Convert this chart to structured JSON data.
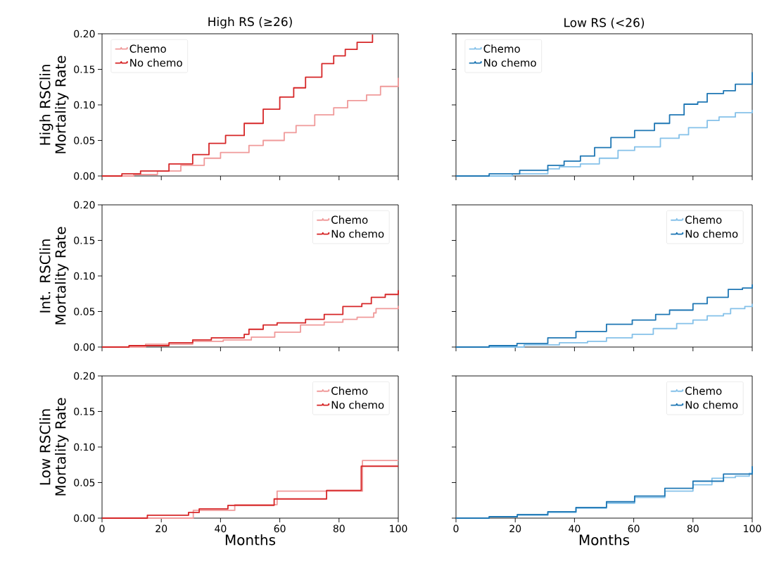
{
  "chart_data": [
    {
      "type": "step",
      "title": "High RS (≥26)",
      "ylabel": "High RSClin Mortality Rate",
      "xlim": [
        0,
        100
      ],
      "ylim": [
        0,
        0.2
      ],
      "xticks": [
        0,
        20,
        40,
        60,
        80,
        100
      ],
      "yticks": [
        {
          "value": 0,
          "label": "0.00"
        },
        {
          "value": 0.05,
          "label": "0.05"
        },
        {
          "value": 0.1,
          "label": "0.10"
        },
        {
          "value": 0.15,
          "label": "0.15"
        },
        {
          "value": 0.2,
          "label": "0.20"
        }
      ],
      "tick_labels": "y",
      "legend": "top left",
      "series": [
        {
          "name": "Chemo",
          "color": "#f09a9a",
          "x": [
            0,
            10.7,
            18.7,
            26.6,
            34.5,
            40,
            49.6,
            54.4,
            61.5,
            65.5,
            71.8,
            78.2,
            82.9,
            89.3,
            94,
            100
          ],
          "values": [
            0,
            0.002,
            0.007,
            0.015,
            0.025,
            0.033,
            0.043,
            0.05,
            0.061,
            0.071,
            0.086,
            0.096,
            0.106,
            0.114,
            0.126,
            0.138
          ]
        },
        {
          "name": "No chemo",
          "color": "#d62728",
          "x": [
            0,
            6.7,
            13,
            22.6,
            30.6,
            36.1,
            41.7,
            48,
            54.4,
            60,
            64.7,
            68.7,
            74.2,
            78.2,
            82.1,
            86.1,
            91.3
          ],
          "values": [
            0,
            0.003,
            0.007,
            0.017,
            0.03,
            0.046,
            0.057,
            0.074,
            0.094,
            0.111,
            0.124,
            0.139,
            0.158,
            0.169,
            0.178,
            0.188,
            0.199
          ]
        }
      ]
    },
    {
      "type": "step",
      "title": "Low RS (<26)",
      "xlim": [
        0,
        100
      ],
      "ylim": [
        0,
        0.2
      ],
      "xticks": [
        0,
        20,
        40,
        60,
        80,
        100
      ],
      "yticks": [
        0,
        0.05,
        0.1,
        0.15,
        0.2
      ],
      "tick_labels": false,
      "legend": "top left",
      "series": [
        {
          "name": "Chemo",
          "color": "#85c1e9",
          "x": [
            0,
            19,
            31,
            34.9,
            42,
            48.4,
            54.7,
            60.3,
            69,
            75.3,
            78.5,
            84.8,
            88.8,
            94.3,
            100
          ],
          "values": [
            0,
            0.003,
            0.01,
            0.013,
            0.017,
            0.025,
            0.036,
            0.041,
            0.053,
            0.058,
            0.068,
            0.078,
            0.083,
            0.089,
            0.093
          ]
        },
        {
          "name": "No chemo",
          "color": "#1f77b4",
          "x": [
            0,
            11.2,
            21.5,
            31,
            36.5,
            42,
            46.8,
            52.3,
            60.3,
            67,
            72.1,
            77,
            81.6,
            84.8,
            90.3,
            94.3,
            100
          ],
          "values": [
            0,
            0.003,
            0.008,
            0.015,
            0.021,
            0.028,
            0.04,
            0.054,
            0.064,
            0.074,
            0.086,
            0.101,
            0.104,
            0.116,
            0.12,
            0.129,
            0.146
          ]
        }
      ]
    },
    {
      "type": "step",
      "ylabel": "Int. RSClin Mortality Rate",
      "xlim": [
        0,
        100
      ],
      "ylim": [
        0,
        0.2
      ],
      "xticks": [
        0,
        20,
        40,
        60,
        80,
        100
      ],
      "yticks": [
        {
          "value": 0,
          "label": "0.00"
        },
        {
          "value": 0.05,
          "label": "0.05"
        },
        {
          "value": 0.1,
          "label": "0.10"
        },
        {
          "value": 0.15,
          "label": "0.15"
        },
        {
          "value": 0.2,
          "label": "0.20"
        }
      ],
      "tick_labels": "y",
      "legend": "top right",
      "series": [
        {
          "name": "Chemo",
          "color": "#f09a9a",
          "x": [
            0,
            14.7,
            30.6,
            40.9,
            50.4,
            58.3,
            63.1,
            67,
            75,
            81.3,
            86.1,
            91.7,
            92.5,
            100
          ],
          "values": [
            0,
            0.004,
            0.008,
            0.01,
            0.014,
            0.021,
            0.021,
            0.031,
            0.035,
            0.039,
            0.042,
            0.048,
            0.054,
            0.058
          ]
        },
        {
          "name": "No chemo",
          "color": "#d62728",
          "x": [
            0,
            9.1,
            22.6,
            30.6,
            36.9,
            48,
            49.6,
            54.4,
            59.1,
            63.9,
            68.7,
            75,
            81.3,
            87.7,
            90.9,
            95.6,
            100
          ],
          "values": [
            0,
            0.002,
            0.006,
            0.01,
            0.013,
            0.018,
            0.025,
            0.031,
            0.034,
            0.034,
            0.039,
            0.046,
            0.057,
            0.061,
            0.07,
            0.074,
            0.08
          ]
        }
      ]
    },
    {
      "type": "step",
      "xlim": [
        0,
        100
      ],
      "ylim": [
        0,
        0.2
      ],
      "xticks": [
        0,
        20,
        40,
        60,
        80,
        100
      ],
      "yticks": [
        0,
        0.05,
        0.1,
        0.15,
        0.2
      ],
      "tick_labels": false,
      "legend": "top right",
      "series": [
        {
          "name": "Chemo",
          "color": "#85c1e9",
          "x": [
            0,
            23,
            34.9,
            44.4,
            50.8,
            59.5,
            66.6,
            74.5,
            80,
            84.8,
            90.3,
            92.7,
            97.5,
            100
          ],
          "values": [
            0,
            0.003,
            0.006,
            0.008,
            0.013,
            0.018,
            0.026,
            0.033,
            0.038,
            0.044,
            0.047,
            0.054,
            0.057,
            0.061
          ]
        },
        {
          "name": "No chemo",
          "color": "#1f77b4",
          "x": [
            0,
            11.2,
            20.6,
            31,
            40.5,
            50.8,
            59.5,
            67.4,
            72.1,
            80,
            84.8,
            91.9,
            96.7,
            100
          ],
          "values": [
            0,
            0.002,
            0.005,
            0.013,
            0.022,
            0.032,
            0.038,
            0.046,
            0.052,
            0.061,
            0.07,
            0.081,
            0.083,
            0.088
          ]
        }
      ]
    },
    {
      "type": "step",
      "ylabel": "Low RSClin Mortality Rate",
      "xlabel": "Months",
      "xlim": [
        0,
        100
      ],
      "ylim": [
        0,
        0.2
      ],
      "xticks": [
        0,
        20,
        40,
        60,
        80,
        100
      ],
      "yticks": [
        {
          "value": 0,
          "label": "0.00"
        },
        {
          "value": 0.05,
          "label": "0.05"
        },
        {
          "value": 0.1,
          "label": "0.10"
        },
        {
          "value": 0.15,
          "label": "0.15"
        },
        {
          "value": 0.2,
          "label": "0.20"
        }
      ],
      "legend": "top right",
      "series": [
        {
          "name": "Chemo",
          "color": "#f09a9a",
          "x": [
            0,
            30.8,
            44.8,
            59.1,
            87.9,
            100
          ],
          "values": [
            0,
            0.011,
            0.019,
            0.038,
            0.081,
            0.081
          ]
        },
        {
          "name": "No chemo",
          "color": "#d62728",
          "x": [
            0,
            15.3,
            29.2,
            32.8,
            42.5,
            58.1,
            75.8,
            87.5,
            100
          ],
          "values": [
            0,
            0.004,
            0.008,
            0.013,
            0.018,
            0.027,
            0.039,
            0.073,
            0.073
          ]
        }
      ]
    },
    {
      "type": "step",
      "xlabel": "Months",
      "xlim": [
        0,
        100
      ],
      "ylim": [
        0,
        0.2
      ],
      "xticks": [
        0,
        20,
        40,
        60,
        80,
        100
      ],
      "yticks": [
        0,
        0.05,
        0.1,
        0.15,
        0.2
      ],
      "tick_labels": "x",
      "legend": "top right",
      "series": [
        {
          "name": "Chemo",
          "color": "#85c1e9",
          "x": [
            0,
            11.2,
            20.7,
            31,
            40.5,
            50.8,
            60.3,
            70.5,
            80,
            86.4,
            90.3,
            94.3,
            99,
            100
          ],
          "values": [
            0,
            0.002,
            0.004,
            0.008,
            0.014,
            0.021,
            0.029,
            0.038,
            0.047,
            0.056,
            0.057,
            0.059,
            0.063,
            0.065
          ]
        },
        {
          "name": "No chemo",
          "color": "#1f77b4",
          "x": [
            0,
            11.2,
            20.7,
            31,
            40.5,
            50.8,
            60.3,
            70.5,
            80,
            90.3,
            100
          ],
          "values": [
            0,
            0.002,
            0.005,
            0.009,
            0.015,
            0.023,
            0.031,
            0.042,
            0.052,
            0.062,
            0.073
          ]
        }
      ]
    }
  ]
}
